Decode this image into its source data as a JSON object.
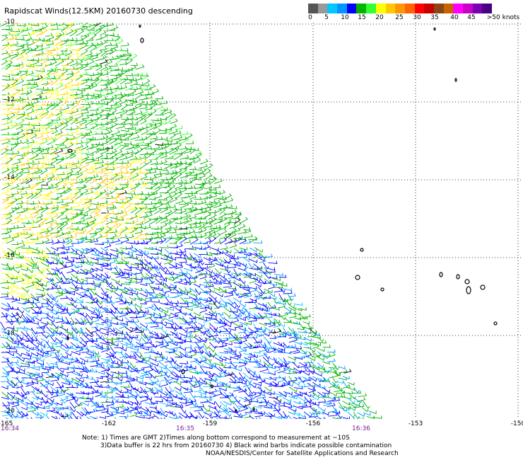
{
  "title": "Rapidscat Winds(12.5KM) 20160730 descending",
  "colorbar": {
    "colors": [
      "#555555",
      "#9a9a9a",
      "#00c8ff",
      "#0096ff",
      "#0000ff",
      "#00b400",
      "#33ff33",
      "#ffff00",
      "#ffc800",
      "#ff9600",
      "#ff6400",
      "#ff0000",
      "#c80000",
      "#8b4513",
      "#c86400",
      "#ff00ff",
      "#c800c8",
      "#7a00b4",
      "#4b0082"
    ],
    "labels": [
      "0",
      "5",
      "10",
      "15",
      "20",
      "25",
      "30",
      "35",
      "40",
      "45",
      ">50 knots"
    ]
  },
  "lat_labels": [
    "-10",
    "-12",
    "-14",
    "-16",
    "-18",
    "-20"
  ],
  "lon_labels": [
    "-165",
    "-162",
    "-159",
    "-156",
    "-153",
    "-150"
  ],
  "time_labels": [
    "16:34",
    "16:35",
    "16:36"
  ],
  "notes": [
    "Note: 1) Times are GMT 2)Times along bottom correspond to measurement at ~10S",
    "3)Data buffer is 22 hrs from 20160730 4) Black wind barbs indicate possible contamination",
    "NOAA/NESDIS/Center for Satellite Applications and Research"
  ]
}
